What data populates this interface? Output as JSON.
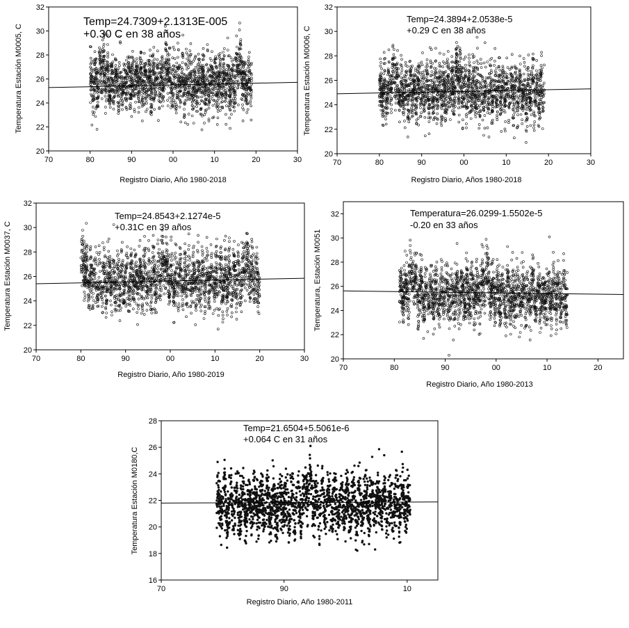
{
  "chart_data": [
    {
      "type": "scatter",
      "ylabel": "Temperatura Estación M0005, C",
      "xlabel": "Registro Diario, Año 1980-2018",
      "annotation": [
        "Temp=24.7309+2.1313E-005",
        "+0.30 C en 38 años"
      ],
      "xticks": [
        "70",
        "80",
        "90",
        "00",
        "10",
        "20",
        "30"
      ],
      "yticks": [
        "20",
        "22",
        "24",
        "26",
        "28",
        "30",
        "32"
      ],
      "xlim": [
        70,
        130
      ],
      "ylim": [
        20,
        32
      ],
      "data_x_range": [
        80,
        119
      ],
      "mean": 25.6,
      "spread": 1.2,
      "peaks": [
        83,
        98.5,
        116
      ],
      "trend": {
        "x": [
          70,
          130
        ],
        "y": [
          25.28,
          25.72
        ]
      }
    },
    {
      "type": "scatter",
      "ylabel": "Temperatura Estación M0006, C",
      "xlabel": "Registro Diario, Años 1980-2018",
      "annotation": [
        "Temp=24.3894+2.0538e-5",
        "+0.29 C en 38 años"
      ],
      "xticks": [
        "70",
        "80",
        "90",
        "00",
        "10",
        "20",
        "30"
      ],
      "yticks": [
        "20",
        "22",
        "24",
        "26",
        "28",
        "30",
        "32"
      ],
      "xlim": [
        70,
        130
      ],
      "ylim": [
        20,
        32
      ],
      "data_x_range": [
        80,
        119
      ],
      "mean": 25.1,
      "spread": 1.2,
      "peaks": [
        83.5,
        98.5
      ],
      "trend": {
        "x": [
          70,
          130
        ],
        "y": [
          24.9,
          25.3
        ]
      }
    },
    {
      "type": "scatter",
      "ylabel": "Temperatura Estación M0037, C",
      "xlabel": "Registro Diario, Año 1980-2019",
      "annotation": [
        "Temp=24.8543+2.1274e-5",
        "+0.31C en 39 años"
      ],
      "xticks": [
        "70",
        "80",
        "90",
        "00",
        "10",
        "20",
        "30"
      ],
      "yticks": [
        "20",
        "22",
        "24",
        "26",
        "28",
        "30",
        "32"
      ],
      "xlim": [
        70,
        130
      ],
      "ylim": [
        20,
        32
      ],
      "data_x_range": [
        80,
        120
      ],
      "mean": 25.7,
      "spread": 1.2,
      "peaks": [
        80.5,
        98.5,
        117
      ],
      "trend": {
        "x": [
          70,
          130
        ],
        "y": [
          25.4,
          25.85
        ]
      }
    },
    {
      "type": "scatter",
      "ylabel": "Temperatura, Estación M0051",
      "xlabel": "Registro Diario, Año 1980-2013",
      "annotation": [
        "Temperatura=26.0299-1.5502e-5",
        "-0.20 en 33 años"
      ],
      "xticks": [
        "70",
        "80",
        "90",
        "00",
        "10",
        "20"
      ],
      "yticks": [
        "20",
        "22",
        "24",
        "26",
        "28",
        "30",
        "32"
      ],
      "xlim": [
        70,
        125
      ],
      "ylim": [
        20,
        33
      ],
      "data_x_range": [
        81,
        114
      ],
      "mean": 25.3,
      "spread": 1.2,
      "peaks": [
        83.5,
        98
      ],
      "trend": {
        "x": [
          70,
          125
        ],
        "y": [
          25.62,
          25.32
        ]
      }
    },
    {
      "type": "scatter",
      "ylabel": "Temperatura Estación M0180,C",
      "xlabel": "Registro Diario, Año 1980-2011",
      "annotation": [
        "Temp=21.6504+5.5061e-6",
        "+0.064 C en 31 años"
      ],
      "xticks": [
        "70",
        "90",
        "10"
      ],
      "yticks": [
        "16",
        "18",
        "20",
        "22",
        "24",
        "26",
        "28"
      ],
      "xlim": [
        70,
        115
      ],
      "ylim": [
        16,
        28
      ],
      "data_x_range": [
        79,
        110.5
      ],
      "mean": 21.7,
      "spread": 1.1,
      "peaks": [
        94
      ],
      "trend": {
        "x": [
          70,
          115
        ],
        "y": [
          21.8,
          21.88
        ]
      }
    }
  ]
}
